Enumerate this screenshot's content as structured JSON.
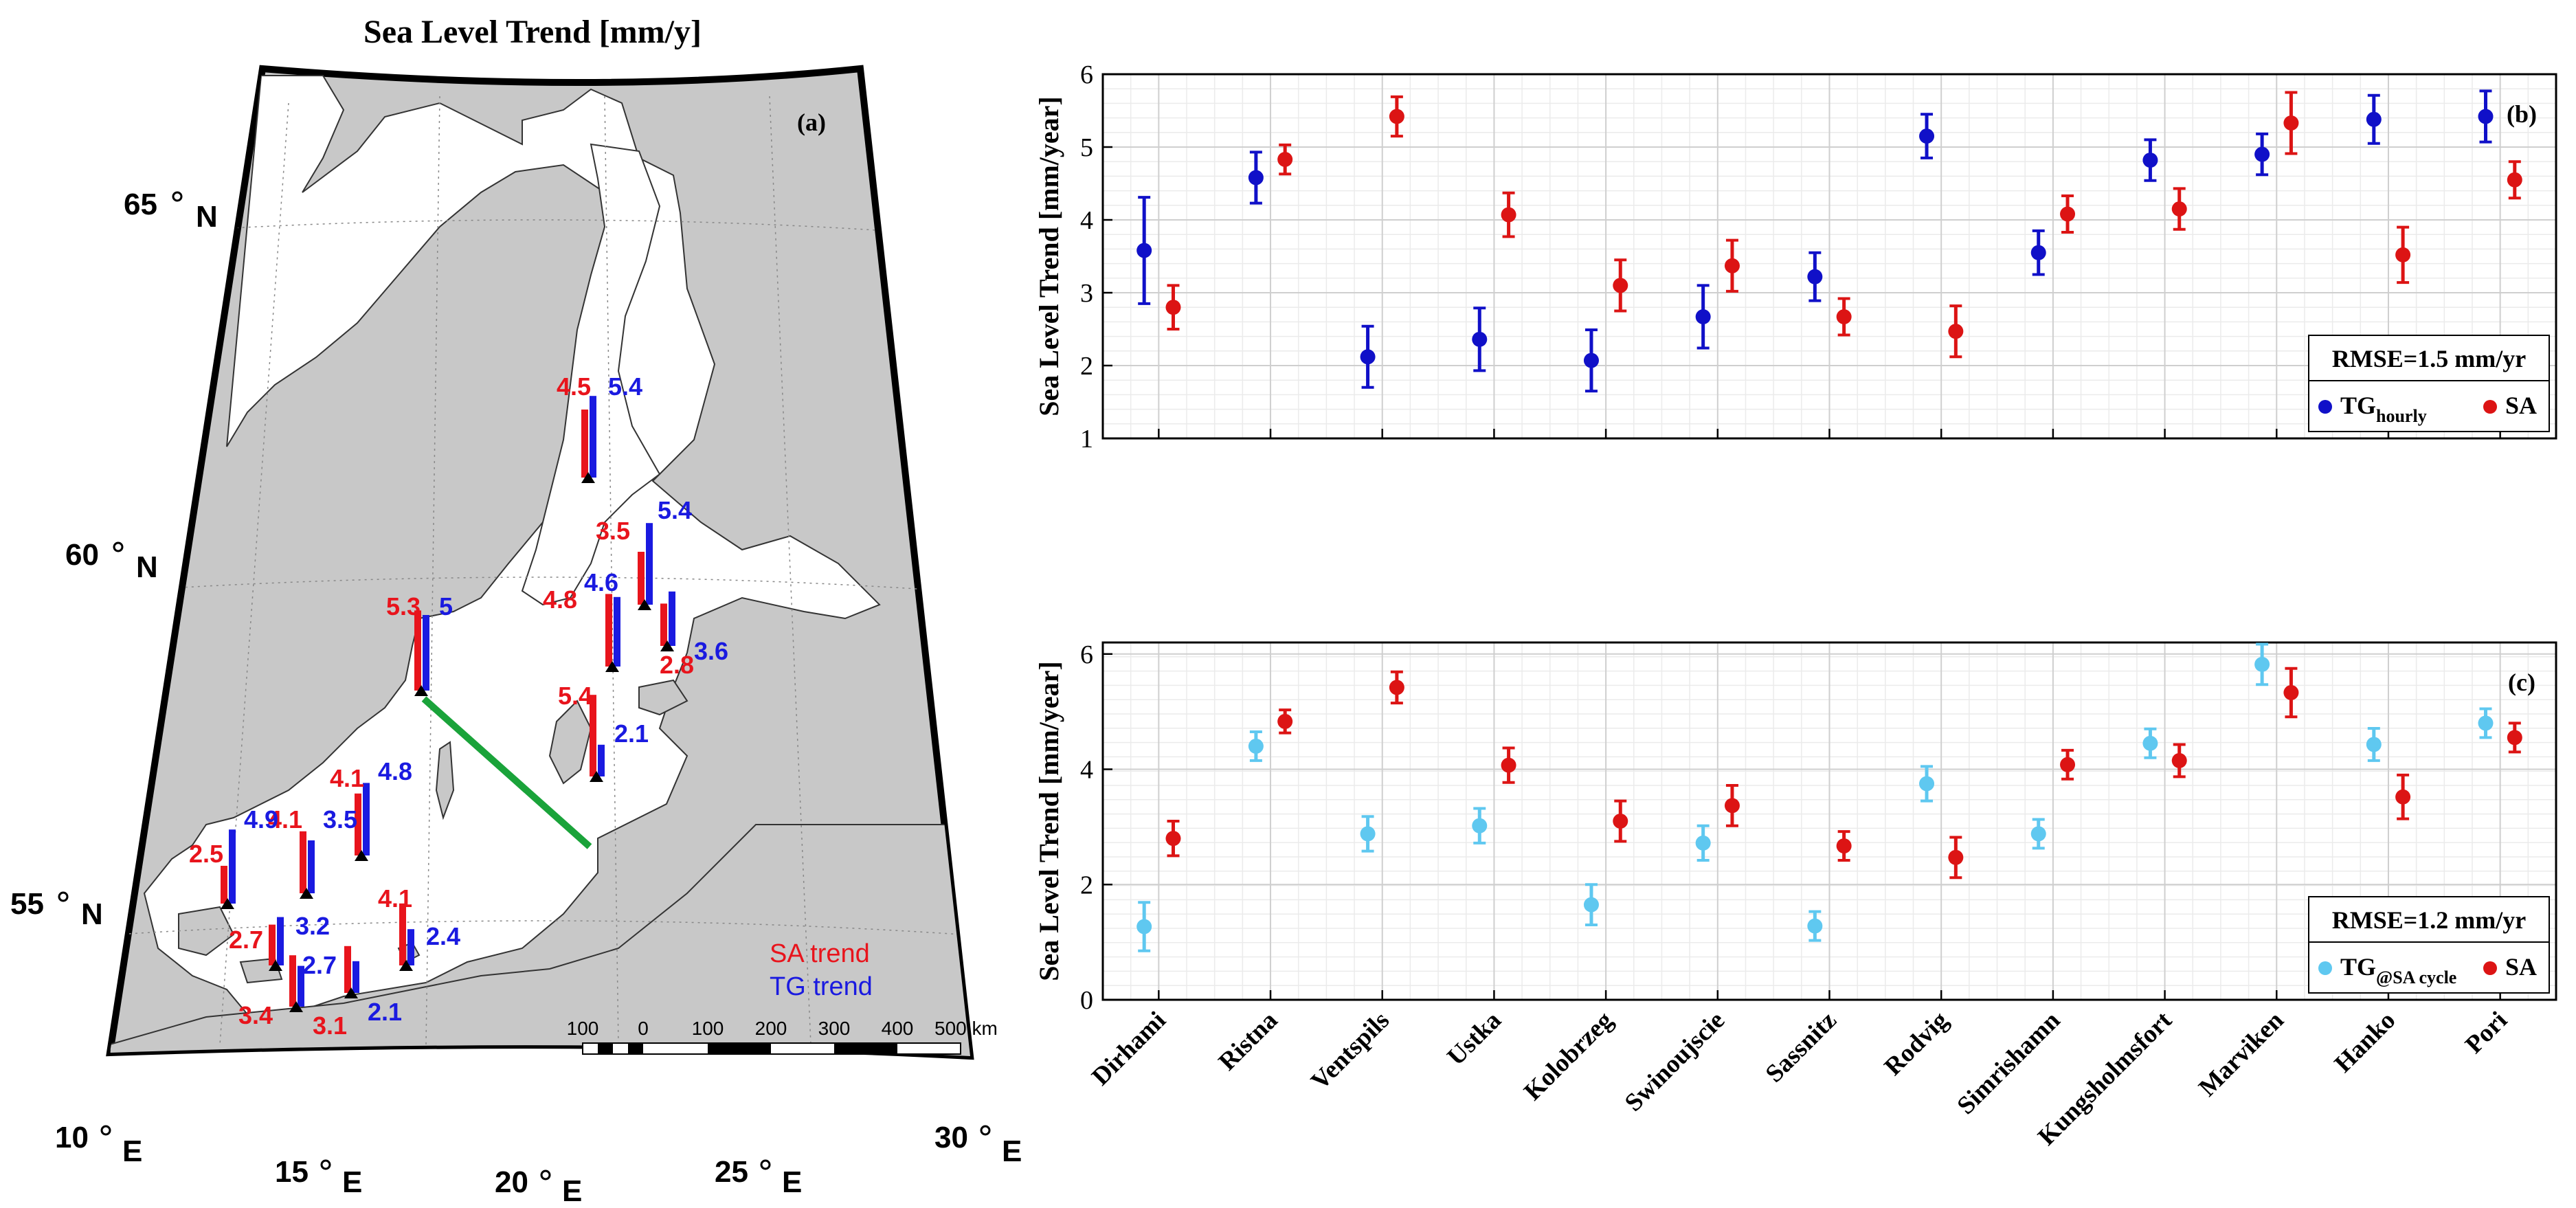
{
  "map": {
    "title": "Sea Level Trend [mm/y]",
    "panel_label": "(a)",
    "lat_labels": [
      {
        "deg": "65",
        "dir": "N"
      },
      {
        "deg": "60",
        "dir": "N"
      },
      {
        "deg": "55",
        "dir": "N"
      }
    ],
    "lon_labels": [
      {
        "deg": "10",
        "dir": "E"
      },
      {
        "deg": "15",
        "dir": "E"
      },
      {
        "deg": "20",
        "dir": "E"
      },
      {
        "deg": "25",
        "dir": "E"
      },
      {
        "deg": "30",
        "dir": "E"
      }
    ],
    "legend": {
      "sa": "SA trend",
      "tg": "TG trend"
    },
    "scale_labels": [
      "100",
      "0",
      "100",
      "200",
      "300",
      "400",
      "500 km"
    ],
    "colors": {
      "sa": "#e8141c",
      "tg": "#1a1ae0",
      "land": "#c8c8c8",
      "transect": "#1aa33a"
    },
    "stations": [
      {
        "sa": "4.5",
        "tg": "5.4",
        "sa_value": 4.5,
        "tg_value": 5.4
      },
      {
        "sa": "3.5",
        "tg": "5.4",
        "sa_value": 3.5,
        "tg_value": 5.4
      },
      {
        "sa": "4.8",
        "tg": "4.6",
        "sa_value": 4.8,
        "tg_value": 4.6
      },
      {
        "sa": "2.8",
        "tg": "3.6",
        "sa_value": 2.8,
        "tg_value": 3.6
      },
      {
        "sa": "5.3",
        "tg": "5",
        "sa_value": 5.3,
        "tg_value": 5.0
      },
      {
        "sa": "5.4",
        "tg": "2.1",
        "sa_value": 5.4,
        "tg_value": 2.1
      },
      {
        "sa": "4.1",
        "tg": "4.8",
        "sa_value": 4.1,
        "tg_value": 4.8
      },
      {
        "sa": "4.1",
        "tg": "3.5",
        "sa_value": 4.1,
        "tg_value": 3.5
      },
      {
        "sa": "2.5",
        "tg": "4.9",
        "sa_value": 2.5,
        "tg_value": 4.9
      },
      {
        "sa": "2.7",
        "tg": "3.2",
        "sa_value": 2.7,
        "tg_value": 3.2
      },
      {
        "sa": "3.4",
        "tg": "2.7",
        "sa_value": 3.4,
        "tg_value": 2.7
      },
      {
        "sa": "3.1",
        "tg": "2.1",
        "sa_value": 3.1,
        "tg_value": 2.1
      },
      {
        "sa": "4.1",
        "tg": "2.4",
        "sa_value": 4.1,
        "tg_value": 2.4
      }
    ]
  },
  "chart_data": [
    {
      "type": "scatter",
      "panel": "(b)",
      "ylabel": "Sea Level Trend [mm/year]",
      "ylim": [
        1,
        6
      ],
      "yticks": [
        "1",
        "2",
        "3",
        "4",
        "5",
        "6"
      ],
      "grid": true,
      "categories": [
        "Dirhami",
        "Ristna",
        "Ventspils",
        "Ustka",
        "Kolobrzeg",
        "Swinoujscie",
        "Sassnitz",
        "Rodvig",
        "Simrishamn",
        "Kungsholmsfort",
        "Marviken",
        "Hanko",
        "Pori"
      ],
      "annotation": "RMSE=1.5 mm/yr",
      "legend_position": "bottom-right",
      "series": [
        {
          "name": "TG",
          "name_sub": "hourly",
          "color": "#1010c8",
          "values": [
            3.58,
            4.58,
            2.12,
            2.36,
            2.07,
            2.67,
            3.22,
            5.15,
            3.55,
            4.82,
            4.9,
            5.38,
            5.42
          ],
          "errors": [
            0.73,
            0.35,
            0.42,
            0.43,
            0.42,
            0.43,
            0.33,
            0.3,
            0.3,
            0.28,
            0.28,
            0.33,
            0.35
          ]
        },
        {
          "name": "SA",
          "color": "#dc1414",
          "values": [
            2.8,
            4.83,
            5.42,
            4.07,
            3.1,
            3.37,
            2.67,
            2.47,
            4.08,
            4.15,
            5.33,
            3.52,
            4.55
          ],
          "errors": [
            0.3,
            0.2,
            0.27,
            0.3,
            0.35,
            0.35,
            0.25,
            0.35,
            0.25,
            0.28,
            0.42,
            0.38,
            0.25
          ]
        }
      ]
    },
    {
      "type": "scatter",
      "panel": "(c)",
      "ylabel": "Sea Level Trend [mm/year]",
      "ylim": [
        0,
        6.2
      ],
      "yticks": [
        "0",
        "2",
        "4",
        "6"
      ],
      "grid": true,
      "categories": [
        "Dirhami",
        "Ristna",
        "Ventspils",
        "Ustka",
        "Kolobrzeg",
        "Swinoujscie",
        "Sassnitz",
        "Rodvig",
        "Simrishamn",
        "Kungsholmsfort",
        "Marviken",
        "Hanko",
        "Pori"
      ],
      "annotation": "RMSE=1.2 mm/yr",
      "legend_position": "bottom-right",
      "series": [
        {
          "name": "TG",
          "name_sub": "@SA cycle",
          "color": "#5fc8f0",
          "values": [
            1.27,
            4.4,
            2.88,
            3.02,
            1.65,
            2.72,
            1.28,
            3.75,
            2.88,
            4.45,
            5.82,
            4.43,
            4.8
          ],
          "errors": [
            0.42,
            0.25,
            0.3,
            0.3,
            0.35,
            0.3,
            0.25,
            0.3,
            0.25,
            0.25,
            0.35,
            0.28,
            0.25
          ]
        },
        {
          "name": "SA",
          "color": "#dc1414",
          "values": [
            2.8,
            4.83,
            5.42,
            4.07,
            3.1,
            3.37,
            2.67,
            2.47,
            4.08,
            4.15,
            5.33,
            3.52,
            4.55
          ],
          "errors": [
            0.3,
            0.2,
            0.27,
            0.3,
            0.35,
            0.35,
            0.25,
            0.35,
            0.25,
            0.28,
            0.42,
            0.38,
            0.25
          ]
        }
      ]
    }
  ]
}
